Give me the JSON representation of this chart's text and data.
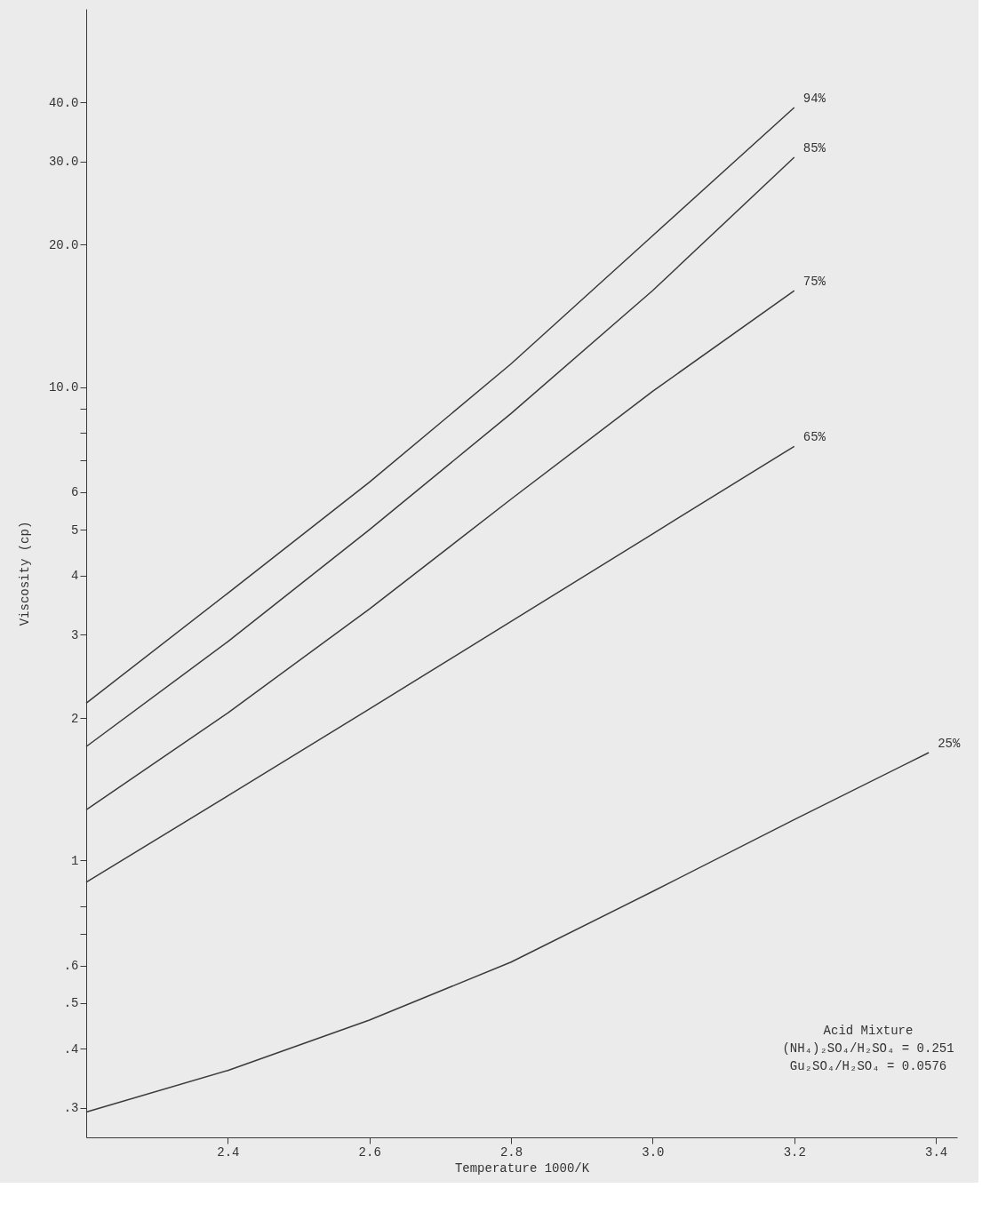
{
  "chart_data": {
    "type": "line",
    "xlabel": "Temperature 1000/K",
    "ylabel": "Viscosity (cp)",
    "log": "y",
    "xlim": [
      2.2,
      3.43
    ],
    "xticks": [
      2.4,
      2.6,
      2.8,
      {
        "value": 3,
        "label": "3.0"
      },
      3.2,
      3.4
    ],
    "ylim": [
      0.26,
      63
    ],
    "yticks": [
      {
        "value": 0.3,
        "label": ".3"
      },
      {
        "value": 0.4,
        "label": ".4"
      },
      {
        "value": 0.5,
        "label": ".5"
      },
      {
        "value": 0.6,
        "label": ".6"
      },
      {
        "value": 0.7,
        "label": null
      },
      {
        "value": 0.8,
        "label": null
      },
      1,
      2,
      3,
      4,
      5,
      6,
      {
        "value": 7,
        "label": null
      },
      {
        "value": 8,
        "label": null
      },
      {
        "value": 9,
        "label": null
      },
      {
        "value": 10,
        "label": "10.0"
      },
      {
        "value": 20,
        "label": "20.0"
      },
      {
        "value": 30,
        "label": "30.0"
      },
      {
        "value": 40,
        "label": "40.0"
      }
    ],
    "grid": false,
    "legend": false,
    "marker": "none",
    "line_style": "solid",
    "series": [
      {
        "name": "94%",
        "color": "#3a3a3a",
        "x": [
          2.2,
          2.4,
          2.6,
          2.8,
          3.0,
          3.2
        ],
        "values": [
          2.15,
          3.67,
          6.3,
          11.2,
          20.9,
          39
        ]
      },
      {
        "name": "85%",
        "color": "#3a3a3a",
        "x": [
          2.2,
          2.4,
          2.6,
          2.8,
          3.0,
          3.2
        ],
        "values": [
          1.74,
          2.9,
          5.0,
          8.8,
          16.0,
          30.6
        ]
      },
      {
        "name": "75%",
        "color": "#3a3a3a",
        "x": [
          2.2,
          2.4,
          2.6,
          2.8,
          3.0,
          3.2
        ],
        "values": [
          1.28,
          2.05,
          3.4,
          5.8,
          9.8,
          16.0
        ]
      },
      {
        "name": "65%",
        "color": "#3a3a3a",
        "x": [
          2.2,
          2.4,
          2.6,
          2.8,
          3.0,
          3.2
        ],
        "values": [
          0.9,
          1.37,
          2.09,
          3.2,
          4.9,
          7.5
        ]
      },
      {
        "name": "25%",
        "color": "#3a3a3a",
        "x": [
          2.2,
          2.4,
          2.6,
          2.8,
          3.0,
          3.2,
          3.39
        ],
        "values": [
          0.294,
          0.36,
          0.46,
          0.61,
          0.86,
          1.22,
          1.69
        ]
      }
    ],
    "annotations": [
      "Acid Mixture",
      "(NH₄)₂SO₄/H₂SO₄ = 0.251",
      "Gu₂SO₄/H₂SO₄ = 0.0576"
    ]
  }
}
